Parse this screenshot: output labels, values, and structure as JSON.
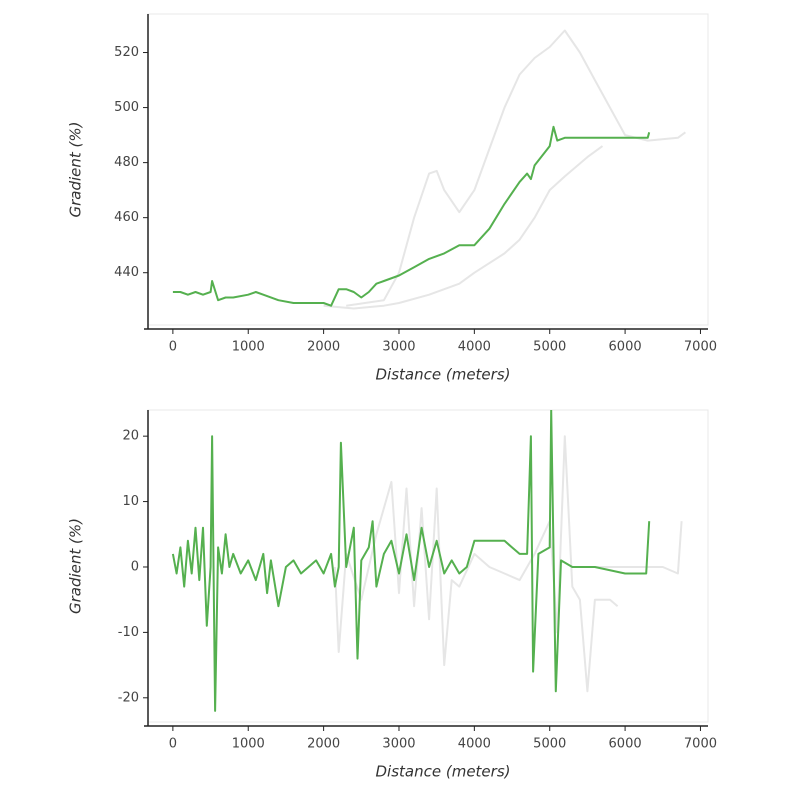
{
  "chart_data": [
    {
      "type": "line",
      "xlabel": "Distance (meters)",
      "ylabel": "Gradient (%)",
      "xlim": [
        -330,
        7100
      ],
      "xticks": [
        0,
        1000,
        2000,
        3000,
        4000,
        5000,
        6000,
        7000
      ],
      "ylim": [
        421,
        534
      ],
      "yticks": [
        440,
        460,
        480,
        500,
        520
      ],
      "series": [
        {
          "color": "#e6e6e6",
          "x": [
            2300,
            2800,
            3000,
            3200,
            3400,
            3500,
            3600,
            3800,
            4000,
            4200,
            4400,
            4600,
            4800,
            5000,
            5200,
            5400,
            5600,
            5800,
            6000,
            6300,
            6700,
            6800
          ],
          "values": [
            428,
            430,
            440,
            460,
            476,
            477,
            470,
            462,
            470,
            485,
            500,
            512,
            518,
            522,
            528,
            520,
            510,
            500,
            490,
            488,
            489,
            491
          ]
        },
        {
          "color": "#e6e6e6",
          "x": [
            2000,
            2400,
            2800,
            3000,
            3400,
            3800,
            4000,
            4400,
            4600,
            4800,
            5000,
            5200,
            5500,
            5700
          ],
          "values": [
            428,
            427,
            428,
            429,
            432,
            436,
            440,
            447,
            452,
            460,
            470,
            475,
            482,
            486
          ]
        },
        {
          "color": "#55b04f",
          "x": [
            0,
            100,
            200,
            300,
            400,
            500,
            520,
            600,
            700,
            800,
            1000,
            1100,
            1200,
            1400,
            1600,
            1800,
            2000,
            2100,
            2200,
            2300,
            2400,
            2500,
            2600,
            2700,
            2800,
            3000,
            3200,
            3400,
            3600,
            3800,
            4000,
            4200,
            4400,
            4600,
            4700,
            4750,
            4800,
            5000,
            5050,
            5100,
            5200,
            5500,
            6000,
            6300,
            6320
          ],
          "values": [
            433,
            433,
            432,
            433,
            432,
            433,
            437,
            430,
            431,
            431,
            432,
            433,
            432,
            430,
            429,
            429,
            429,
            428,
            434,
            434,
            433,
            431,
            433,
            436,
            437,
            439,
            442,
            445,
            447,
            450,
            450,
            456,
            465,
            473,
            476,
            474,
            479,
            486,
            493,
            488,
            489,
            489,
            489,
            489,
            491
          ]
        }
      ]
    },
    {
      "type": "line",
      "xlabel": "Distance (meters)",
      "ylabel": "Gradient (%)",
      "xlim": [
        -330,
        7100
      ],
      "xticks": [
        0,
        1000,
        2000,
        3000,
        4000,
        5000,
        6000,
        7000
      ],
      "ylim": [
        -23.7,
        24
      ],
      "yticks": [
        -20,
        -10,
        0,
        10,
        20
      ],
      "series": [
        {
          "color": "#e6e6e6",
          "x": [
            2150,
            2200,
            2300,
            2500,
            2700,
            2900,
            3000,
            3100,
            3200,
            3300,
            3400,
            3500,
            3600,
            3700,
            3800,
            4000,
            4200,
            4400,
            4600,
            4800,
            5000,
            5100,
            5200,
            5300,
            5400,
            5500,
            5600,
            5800,
            5900
          ],
          "values": [
            0,
            -13,
            2,
            -5,
            5,
            13,
            -4,
            12,
            -6,
            9,
            -8,
            12,
            -15,
            -2,
            -3,
            2,
            0,
            -1,
            -2,
            2,
            7,
            -10,
            20,
            -3,
            -5,
            -19,
            -5,
            -5,
            -6
          ]
        },
        {
          "color": "#e6e6e6",
          "x": [
            5600,
            6000,
            6500,
            6700,
            6750
          ],
          "values": [
            0,
            0,
            0,
            -1,
            7
          ]
        },
        {
          "color": "#55b04f",
          "x": [
            0,
            50,
            100,
            150,
            200,
            250,
            300,
            350,
            400,
            450,
            500,
            520,
            560,
            600,
            650,
            700,
            750,
            800,
            900,
            1000,
            1100,
            1200,
            1250,
            1300,
            1400,
            1500,
            1600,
            1700,
            1800,
            1900,
            2000,
            2100,
            2150,
            2200,
            2230,
            2300,
            2400,
            2450,
            2500,
            2600,
            2650,
            2700,
            2800,
            2900,
            3000,
            3100,
            3200,
            3300,
            3400,
            3500,
            3600,
            3700,
            3800,
            3900,
            4000,
            4200,
            4400,
            4500,
            4600,
            4700,
            4750,
            4780,
            4850,
            5000,
            5020,
            5080,
            5150,
            5300,
            5600,
            6000,
            6280,
            6320
          ],
          "values": [
            2,
            -1,
            3,
            -3,
            4,
            -1,
            6,
            -2,
            6,
            -9,
            0,
            20,
            -22,
            3,
            -1,
            5,
            0,
            2,
            -1,
            1,
            -2,
            2,
            -4,
            1,
            -6,
            0,
            1,
            -1,
            0,
            1,
            -1,
            2,
            -3,
            0,
            19,
            0,
            6,
            -14,
            1,
            3,
            7,
            -3,
            2,
            4,
            -1,
            5,
            -2,
            6,
            0,
            4,
            -1,
            1,
            -1,
            0,
            4,
            4,
            4,
            3,
            2,
            2,
            20,
            -16,
            2,
            3,
            24,
            -19,
            1,
            0,
            0,
            -1,
            -1,
            7
          ]
        }
      ]
    }
  ]
}
